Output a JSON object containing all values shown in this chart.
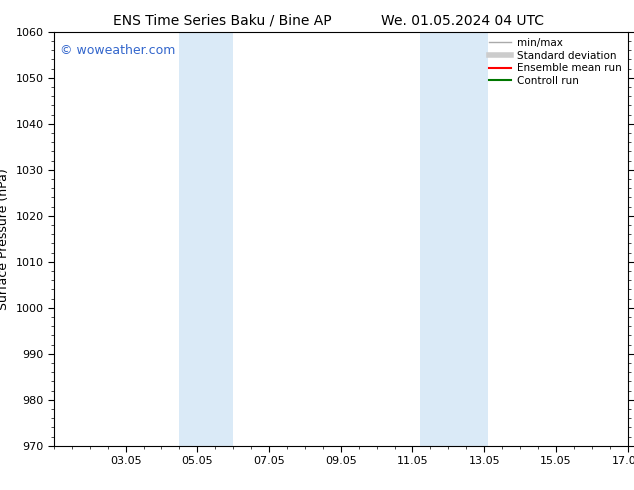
{
  "title_left": "ENS Time Series Baku / Bine AP",
  "title_right": "We. 01.05.2024 04 UTC",
  "ylabel": "Surface Pressure (hPa)",
  "ylim": [
    970,
    1060
  ],
  "yticks": [
    970,
    980,
    990,
    1000,
    1010,
    1020,
    1030,
    1040,
    1050,
    1060
  ],
  "xlim_start": 1,
  "xlim_end": 17,
  "xtick_labels": [
    "03.05",
    "05.05",
    "07.05",
    "09.05",
    "11.05",
    "13.05",
    "15.05",
    "17.05"
  ],
  "xtick_positions": [
    3,
    5,
    7,
    9,
    11,
    13,
    15,
    17
  ],
  "shaded_bands": [
    {
      "xmin": 4.5,
      "xmax": 6.0
    },
    {
      "xmin": 11.2,
      "xmax": 13.1
    }
  ],
  "shaded_color": "#daeaf7",
  "watermark_text": "© woweather.com",
  "watermark_color": "#3366cc",
  "background_color": "#ffffff",
  "axes_color": "#000000",
  "legend_items": [
    {
      "label": "min/max",
      "color": "#aaaaaa",
      "lw": 1.0
    },
    {
      "label": "Standard deviation",
      "color": "#cccccc",
      "lw": 4.0
    },
    {
      "label": "Ensemble mean run",
      "color": "#ff0000",
      "lw": 1.5
    },
    {
      "label": "Controll run",
      "color": "#007700",
      "lw": 1.5
    }
  ],
  "title_fontsize": 10,
  "tick_fontsize": 8,
  "ylabel_fontsize": 9,
  "legend_fontsize": 7.5,
  "watermark_fontsize": 9
}
